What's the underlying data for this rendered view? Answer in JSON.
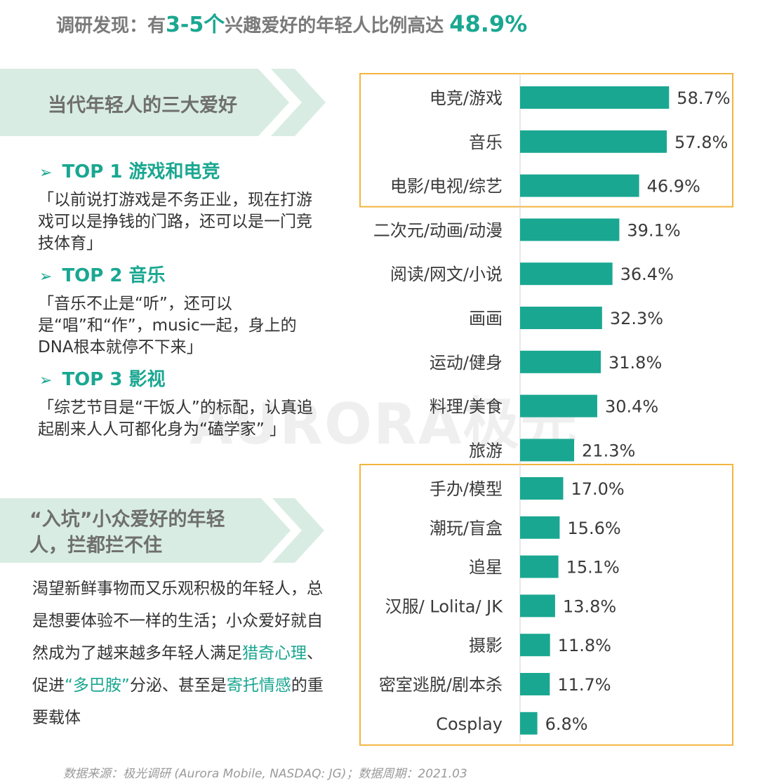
{
  "headline": {
    "part1": "调研发现：有",
    "part2": "3-5个",
    "part3": "兴趣爱好的年轻人比例高达",
    "part4": "48.9%"
  },
  "banner1": {
    "title": "当代年轻人的三大爱好"
  },
  "top_items": [
    {
      "heading": "TOP 1 游戏和电竞",
      "quote": "「以前说打游戏是不务正业，现在打游戏可以是挣钱的门路，还可以是一门竞技体育」"
    },
    {
      "heading": "TOP 2 音乐",
      "quote": "「音乐不止是“听”，还可以是“唱”和“作”，music一起，身上的DNA根本就停不下来」"
    },
    {
      "heading": "TOP 3 影视",
      "quote": "「综艺节目是“干饭人”的标配，认真追起剧来人人可都化身为“磕学家” 」"
    }
  ],
  "banner2": {
    "title": "“入坑”小众爱好的年轻人，拦都拦不住"
  },
  "body": {
    "s1": "渴望新鲜事物而又乐观积极的年轻人，总是想要体验不一样的生活；小众爱好就自然成为了越来越多年轻人满足",
    "h1": "猎奇心理",
    "s2": "、促进",
    "h2": "“多巴胺”",
    "s3": "分泌、甚至是",
    "h3": "寄托情感",
    "s4": "的重要载体"
  },
  "watermark": "AURORA极光",
  "footnote": "数据来源：极光调研 (Aurora Mobile, NASDAQ: JG)；数据周期：2021.03",
  "colors": {
    "accent": "#1aa791",
    "bar": "#1aa791",
    "highlight_box": "#f3b53f",
    "banner_fill": "#d8ece3"
  },
  "chart_data": {
    "type": "bar",
    "orientation": "horizontal",
    "categories": [
      "电竞/游戏",
      "音乐",
      "电影/电视/综艺",
      "二次元/动画/动漫",
      "阅读/网文/小说",
      "画画",
      "运动/健身",
      "料理/美食",
      "旅游",
      "手办/模型",
      "潮玩/盲盒",
      "追星",
      "汉服/ Lolita/ JK",
      "摄影",
      "密室逃脱/剧本杀",
      "Cosplay"
    ],
    "values": [
      58.7,
      57.8,
      46.9,
      39.1,
      36.4,
      32.3,
      31.8,
      30.4,
      21.3,
      17.0,
      15.6,
      15.1,
      13.8,
      11.8,
      11.7,
      6.8
    ],
    "value_labels": [
      "58.7%",
      "57.8%",
      "46.9%",
      "39.1%",
      "36.4%",
      "32.3%",
      "31.8%",
      "30.4%",
      "21.3%",
      "17.0%",
      "15.6%",
      "15.1%",
      "13.8%",
      "11.8%",
      "11.7%",
      "6.8%"
    ],
    "unit": "%",
    "xlim": [
      0,
      60
    ],
    "highlight_groups": [
      {
        "from": 0,
        "to": 2
      },
      {
        "from": 9,
        "to": 15
      }
    ]
  }
}
